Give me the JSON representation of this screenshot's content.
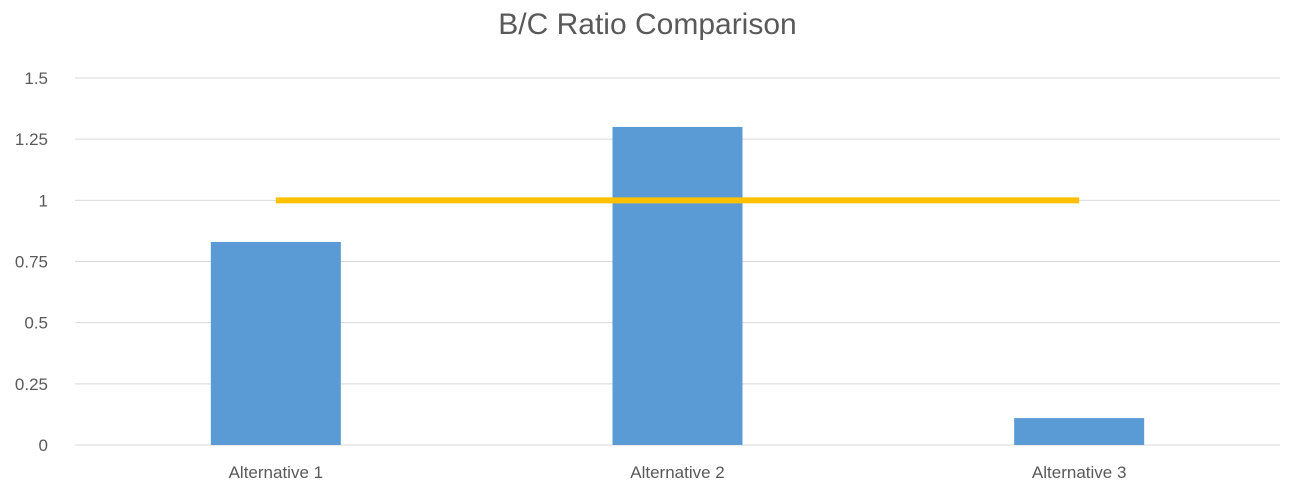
{
  "chart_data": {
    "type": "bar",
    "title": "B/C Ratio Comparison",
    "categories": [
      "Alternative 1",
      "Alternative 2",
      "Alternative 3"
    ],
    "series": [
      {
        "type": "bar",
        "values": [
          0.83,
          1.3,
          0.11
        ],
        "color": "#5B9BD5"
      },
      {
        "type": "line",
        "values": [
          1.0,
          1.0,
          1.0
        ],
        "color": "#FFC000"
      }
    ],
    "y_ticks": [
      "0",
      "0.25",
      "0.5",
      "0.75",
      "1",
      "1.25",
      "1.5"
    ],
    "ylim": [
      0,
      1.5
    ],
    "grid": true,
    "legend": "none",
    "colors": {
      "bar": "#5B9BD5",
      "line": "#FFC000",
      "grid": "#D9D9D9",
      "text": "#595959"
    }
  }
}
